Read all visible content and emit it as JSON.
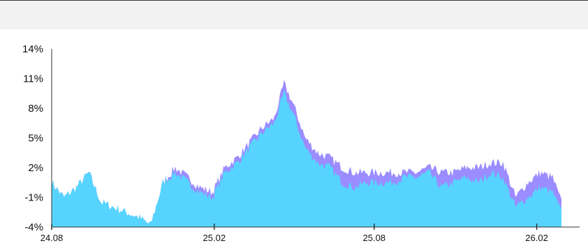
{
  "chart_data": {
    "type": "area",
    "title": "",
    "xlabel": "",
    "ylabel": "",
    "y_tick_labels": [
      "14%",
      "11%",
      "8%",
      "5%",
      "2%",
      "-1%",
      "-4%"
    ],
    "y_ticks": [
      14,
      11,
      8,
      5,
      2,
      -1,
      -4
    ],
    "ylim": [
      -4,
      14
    ],
    "x_tick_labels": [
      "24.08",
      "25.02",
      "25.08",
      "26.02"
    ],
    "x_ticks": [
      "2024-08",
      "2025-02",
      "2025-08",
      "2026-02"
    ],
    "xlim": [
      "2024-08",
      "2026-03"
    ],
    "grid": false,
    "legend": "none",
    "colors": {
      "upper": "#9b8cff",
      "lower": "#56d4ff"
    },
    "series": [
      {
        "values": [
          [
            "2024-08-01",
            0.5
          ],
          [
            "2024-08-15",
            -1.0
          ],
          [
            "2024-08-29",
            0.0
          ],
          [
            "2024-09-12",
            1.5
          ],
          [
            "2024-09-26",
            -1.5
          ],
          [
            "2024-10-10",
            -2.0
          ],
          [
            "2024-10-24",
            -2.5
          ],
          [
            "2024-11-07",
            -3.0
          ],
          [
            "2024-11-21",
            -3.8
          ],
          [
            "2024-12-05",
            0.5
          ],
          [
            "2024-12-19",
            2.0
          ],
          [
            "2025-01-02",
            1.0
          ],
          [
            "2025-01-16",
            0.0
          ],
          [
            "2025-01-30",
            -0.5
          ],
          [
            "2025-02-13",
            2.0
          ],
          [
            "2025-02-27",
            3.0
          ],
          [
            "2025-03-13",
            4.5
          ],
          [
            "2025-03-27",
            6.0
          ],
          [
            "2025-04-10",
            7.0
          ],
          [
            "2025-04-21",
            10.5
          ],
          [
            "2025-05-01",
            8.5
          ],
          [
            "2025-05-15",
            5.0
          ],
          [
            "2025-05-29",
            3.5
          ],
          [
            "2025-06-12",
            3.0
          ],
          [
            "2025-06-26",
            2.0
          ],
          [
            "2025-07-10",
            1.5
          ],
          [
            "2025-07-24",
            1.5
          ],
          [
            "2025-08-07",
            1.5
          ],
          [
            "2025-08-21",
            1.5
          ],
          [
            "2025-09-04",
            1.5
          ],
          [
            "2025-09-18",
            1.5
          ],
          [
            "2025-10-02",
            2.0
          ],
          [
            "2025-10-16",
            1.5
          ],
          [
            "2025-10-30",
            1.5
          ],
          [
            "2025-11-13",
            2.0
          ],
          [
            "2025-11-27",
            2.0
          ],
          [
            "2025-12-11",
            2.5
          ],
          [
            "2025-12-25",
            2.5
          ],
          [
            "2026-01-08",
            -1.0
          ],
          [
            "2026-01-22",
            0.5
          ],
          [
            "2026-02-05",
            1.5
          ],
          [
            "2026-02-19",
            1.0
          ],
          [
            "2026-03-01",
            -1.5
          ]
        ]
      },
      {
        "values": [
          [
            "2024-08-01",
            0.5
          ],
          [
            "2024-08-15",
            -1.0
          ],
          [
            "2024-08-29",
            0.0
          ],
          [
            "2024-09-12",
            1.5
          ],
          [
            "2024-09-26",
            -1.5
          ],
          [
            "2024-10-10",
            -2.0
          ],
          [
            "2024-10-24",
            -2.5
          ],
          [
            "2024-11-07",
            -3.0
          ],
          [
            "2024-11-21",
            -3.8
          ],
          [
            "2024-12-05",
            0.5
          ],
          [
            "2024-12-19",
            1.5
          ],
          [
            "2025-01-02",
            0.5
          ],
          [
            "2025-01-16",
            -0.5
          ],
          [
            "2025-01-30",
            -1.0
          ],
          [
            "2025-02-13",
            1.5
          ],
          [
            "2025-02-27",
            2.5
          ],
          [
            "2025-03-13",
            4.0
          ],
          [
            "2025-03-27",
            5.5
          ],
          [
            "2025-04-10",
            6.5
          ],
          [
            "2025-04-21",
            9.5
          ],
          [
            "2025-05-01",
            7.5
          ],
          [
            "2025-05-15",
            4.0
          ],
          [
            "2025-05-29",
            2.5
          ],
          [
            "2025-06-12",
            2.0
          ],
          [
            "2025-06-26",
            0.5
          ],
          [
            "2025-07-10",
            0.0
          ],
          [
            "2025-07-24",
            0.5
          ],
          [
            "2025-08-07",
            0.5
          ],
          [
            "2025-08-21",
            0.5
          ],
          [
            "2025-09-04",
            1.0
          ],
          [
            "2025-09-18",
            1.0
          ],
          [
            "2025-10-02",
            1.5
          ],
          [
            "2025-10-16",
            0.0
          ],
          [
            "2025-10-30",
            0.5
          ],
          [
            "2025-11-13",
            1.0
          ],
          [
            "2025-11-27",
            0.5
          ],
          [
            "2025-12-11",
            1.5
          ],
          [
            "2025-12-25",
            1.0
          ],
          [
            "2026-01-08",
            -2.0
          ],
          [
            "2026-01-22",
            -1.0
          ],
          [
            "2026-02-05",
            0.0
          ],
          [
            "2026-02-19",
            -0.5
          ],
          [
            "2026-03-01",
            -2.5
          ]
        ]
      }
    ]
  }
}
